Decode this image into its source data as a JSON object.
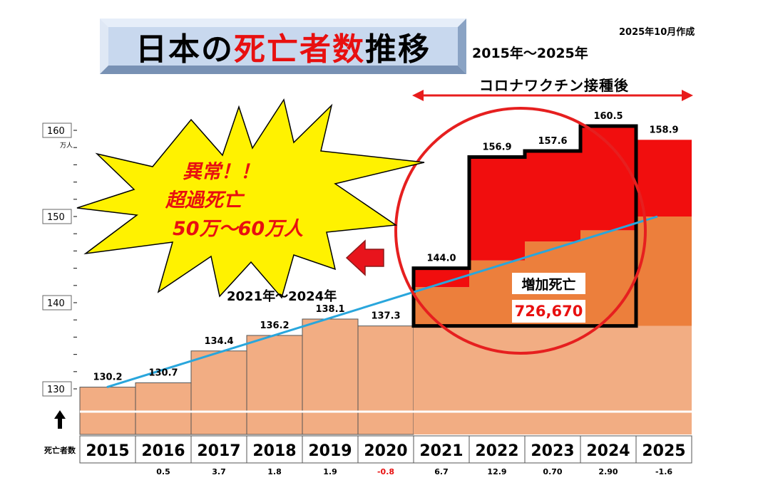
{
  "header": {
    "title_part1": "日本の",
    "title_part2": "死亡者数",
    "title_part3": "推移",
    "range": "2015年～2025年",
    "created": "2025年10月作成"
  },
  "annotations": {
    "vaccine": "コロナワクチン接種後",
    "abnormal_line1": "異常！！",
    "abnormal_line2": "超過死亡",
    "abnormal_line3": "50万～60万人",
    "period": "2021年～2024年",
    "increase_label": "増加死亡",
    "increase_value": "726,670"
  },
  "colors": {
    "base_bar": "#f2ad83",
    "mid_bar": "#ec7f3c",
    "excess_bar": "#f10e0e",
    "trend_line": "#29a6dc",
    "circle": "#e61f1f",
    "star": "#fff200",
    "arrow": "#e8141c",
    "title_box": "#c8d8ee"
  },
  "chart_data": {
    "type": "bar",
    "title": "日本の死亡者数推移",
    "ylabel": "死亡者数",
    "yunit": "万人",
    "categories": [
      "2015",
      "2016",
      "2017",
      "2018",
      "2019",
      "2020",
      "2021",
      "2022",
      "2023",
      "2024",
      "2025"
    ],
    "values": [
      130.2,
      130.7,
      134.4,
      136.2,
      138.1,
      137.3,
      144.0,
      156.9,
      157.6,
      160.5,
      158.9
    ],
    "value_labels": [
      "130.2",
      "130.7",
      "134.4",
      "136.2",
      "138.1",
      "137.3",
      "144.0",
      "156.9",
      "157.6",
      "160.5",
      "158.9"
    ],
    "changes": [
      "",
      "0.5",
      "3.7",
      "1.8",
      "1.9",
      "-0.8",
      "6.7",
      "12.9",
      "0.70",
      "2.90",
      "-1.6"
    ],
    "yticks": [
      130,
      140,
      150,
      160
    ],
    "ylim": [
      126,
      160
    ],
    "trend": {
      "from": {
        "x": "2015",
        "y": 130.2
      },
      "to": {
        "x": "2025",
        "y": 150.0
      }
    },
    "excess_years": [
      "2021",
      "2022",
      "2023",
      "2024"
    ]
  }
}
